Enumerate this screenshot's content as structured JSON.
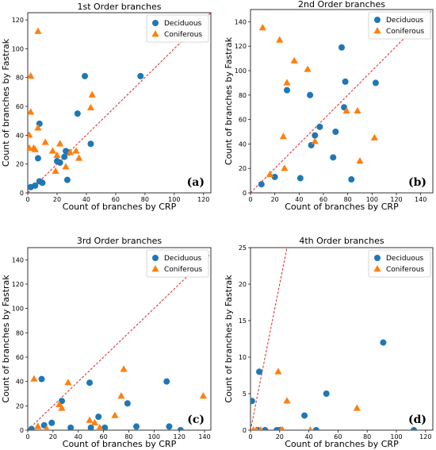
{
  "colors": {
    "deciduous": "#1f77b4",
    "coniferous": "#ff7f0e",
    "diagonal": "#d62728"
  },
  "chart_data": [
    {
      "type": "scatter",
      "title": "1st Order branches",
      "xlabel": "Count of branches by CRP",
      "ylabel": "Count of branches by Fastrak",
      "xlim": [
        0,
        125
      ],
      "ylim": [
        0,
        125
      ],
      "xticks": [
        0,
        20,
        40,
        60,
        80,
        100,
        120
      ],
      "yticks": [
        0,
        20,
        40,
        60,
        80,
        100,
        120
      ],
      "panel_label": "(a)",
      "legend_position": "top-right",
      "reference_line": "y = x",
      "series": [
        {
          "name": "Deciduous",
          "marker": "circle",
          "points": [
            [
              2,
              4
            ],
            [
              5,
              5
            ],
            [
              8,
              48
            ],
            [
              7,
              24
            ],
            [
              8,
              8
            ],
            [
              10,
              7
            ],
            [
              20,
              22
            ],
            [
              22,
              21
            ],
            [
              25,
              25
            ],
            [
              26,
              29
            ],
            [
              27,
              9
            ],
            [
              28,
              28
            ],
            [
              34,
              55
            ],
            [
              39,
              81
            ],
            [
              43,
              34
            ],
            [
              77,
              81
            ]
          ]
        },
        {
          "name": "Coniferous",
          "marker": "triangle",
          "points": [
            [
              1,
              40
            ],
            [
              2,
              81
            ],
            [
              2,
              56
            ],
            [
              1,
              31
            ],
            [
              4,
              31
            ],
            [
              5,
              30
            ],
            [
              7,
              45
            ],
            [
              7,
              112
            ],
            [
              12,
              35
            ],
            [
              17,
              29
            ],
            [
              19,
              15
            ],
            [
              20,
              26
            ],
            [
              22,
              34
            ],
            [
              26,
              18
            ],
            [
              29,
              28
            ],
            [
              33,
              29
            ],
            [
              35,
              24
            ],
            [
              43,
              59
            ],
            [
              44,
              68
            ]
          ]
        }
      ]
    },
    {
      "type": "scatter",
      "title": "2nd Order branches",
      "xlabel": "Count of branches by CRP",
      "ylabel": "Count of branches by Fastrak",
      "xlim": [
        0,
        150
      ],
      "ylim": [
        0,
        150
      ],
      "xticks": [
        0,
        20,
        40,
        60,
        80,
        100,
        120,
        140
      ],
      "yticks": [
        0,
        20,
        40,
        60,
        80,
        100,
        120,
        140
      ],
      "panel_label": "(b)",
      "legend_position": "top-right",
      "reference_line": "y = x",
      "series": [
        {
          "name": "Deciduous",
          "marker": "circle",
          "points": [
            [
              9,
              7
            ],
            [
              20,
              13
            ],
            [
              30,
              84
            ],
            [
              41,
              12
            ],
            [
              49,
              80
            ],
            [
              50,
              39
            ],
            [
              53,
              47
            ],
            [
              57,
              54
            ],
            [
              68,
              29
            ],
            [
              70,
              50
            ],
            [
              75,
              119
            ],
            [
              77,
              70
            ],
            [
              78,
              91
            ],
            [
              83,
              11
            ],
            [
              103,
              90
            ]
          ]
        },
        {
          "name": "Coniferous",
          "marker": "triangle",
          "points": [
            [
              10,
              135
            ],
            [
              16,
              15
            ],
            [
              24,
              125
            ],
            [
              27,
              46
            ],
            [
              28,
              20
            ],
            [
              30,
              90
            ],
            [
              36,
              108
            ],
            [
              47,
              101
            ],
            [
              53,
              42
            ],
            [
              79,
              67
            ],
            [
              88,
              67
            ],
            [
              90,
              26
            ],
            [
              102,
              45
            ]
          ]
        }
      ]
    },
    {
      "type": "scatter",
      "title": "3rd Order branches",
      "xlabel": "Count of branches by CRP",
      "ylabel": "Count of branches by Fastrak",
      "xlim": [
        0,
        145
      ],
      "ylim": [
        0,
        150
      ],
      "xticks": [
        0,
        20,
        40,
        60,
        80,
        100,
        120,
        140
      ],
      "yticks": [
        0,
        20,
        40,
        60,
        80,
        100,
        120,
        140
      ],
      "panel_label": "(c)",
      "legend_position": "top-right",
      "reference_line": "y = x",
      "series": [
        {
          "name": "Deciduous",
          "marker": "circle",
          "points": [
            [
              3,
              1
            ],
            [
              11,
              42
            ],
            [
              13,
              4
            ],
            [
              19,
              6
            ],
            [
              27,
              24
            ],
            [
              34,
              2
            ],
            [
              49,
              39
            ],
            [
              50,
              2
            ],
            [
              56,
              11
            ],
            [
              61,
              2
            ],
            [
              79,
              22
            ],
            [
              86,
              3
            ],
            [
              110,
              40
            ],
            [
              112,
              3
            ],
            [
              121,
              0
            ]
          ]
        },
        {
          "name": "Coniferous",
          "marker": "triangle",
          "points": [
            [
              5,
              42
            ],
            [
              8,
              3
            ],
            [
              15,
              1
            ],
            [
              25,
              21
            ],
            [
              27,
              18
            ],
            [
              32,
              39
            ],
            [
              49,
              8
            ],
            [
              53,
              6
            ],
            [
              57,
              2
            ],
            [
              69,
              12
            ],
            [
              74,
              28
            ],
            [
              76,
              50
            ],
            [
              139,
              28
            ]
          ]
        }
      ]
    },
    {
      "type": "scatter",
      "title": "4th Order branches",
      "xlabel": "Count of branches by CRP",
      "ylabel": "Count of branches by Fastrak",
      "xlim": [
        0,
        125
      ],
      "ylim": [
        0,
        25
      ],
      "xticks": [
        0,
        20,
        40,
        60,
        80,
        100,
        120
      ],
      "yticks": [
        0,
        5,
        10,
        15,
        20,
        25
      ],
      "panel_label": "(d)",
      "legend_position": "top-right",
      "reference_line": "y = x",
      "series": [
        {
          "name": "Deciduous",
          "marker": "circle",
          "points": [
            [
              1,
              4
            ],
            [
              5,
              0
            ],
            [
              6,
              8
            ],
            [
              10,
              0
            ],
            [
              18,
              0
            ],
            [
              20,
              0
            ],
            [
              37,
              2
            ],
            [
              45,
              0
            ],
            [
              52,
              5
            ],
            [
              91,
              12
            ],
            [
              112,
              0
            ]
          ]
        },
        {
          "name": "Coniferous",
          "marker": "triangle",
          "points": [
            [
              2,
              0
            ],
            [
              4,
              0
            ],
            [
              7,
              0
            ],
            [
              19,
              8
            ],
            [
              21,
              0
            ],
            [
              22,
              0
            ],
            [
              25,
              4
            ],
            [
              41,
              0
            ],
            [
              73,
              3
            ]
          ]
        }
      ]
    }
  ]
}
